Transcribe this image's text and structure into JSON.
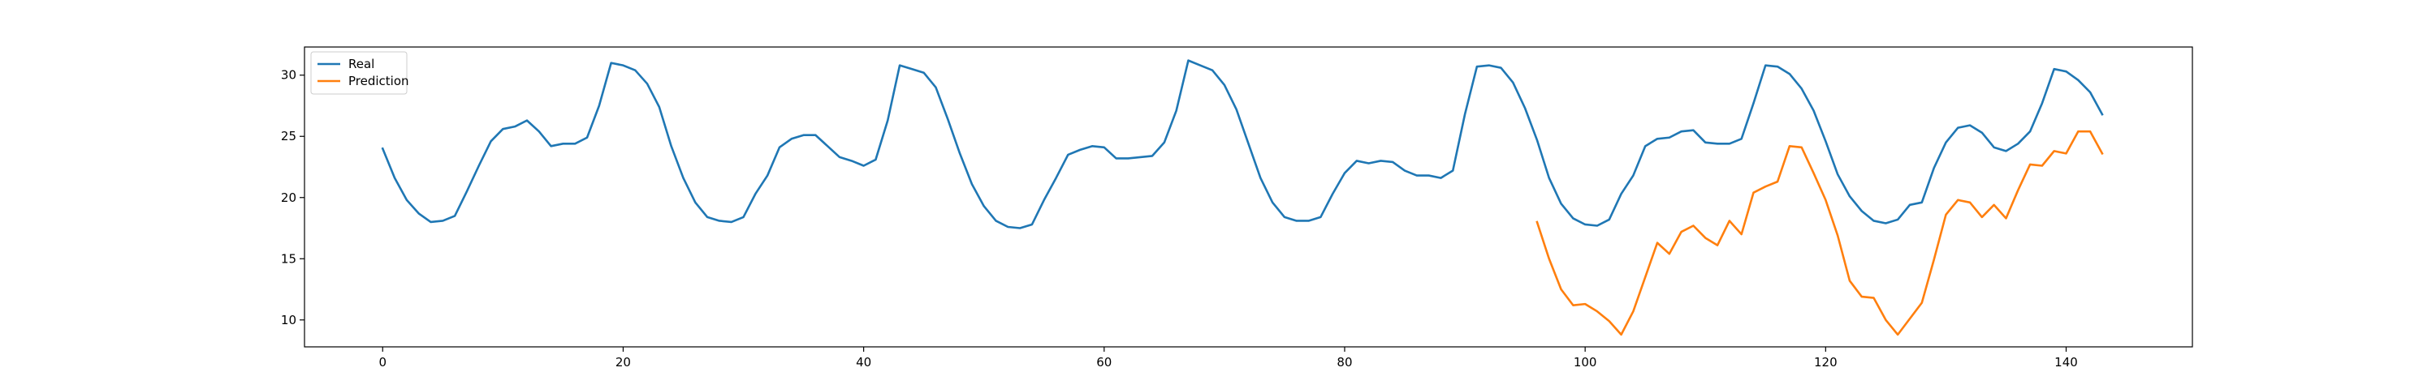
{
  "chart_data": {
    "type": "line",
    "title": "",
    "xlabel": "",
    "ylabel": "",
    "xlim": [
      -6.5,
      150.5
    ],
    "ylim": [
      7.8,
      32.3
    ],
    "grid": false,
    "legend_position": "top-left",
    "x_ticks": [
      0,
      20,
      40,
      60,
      80,
      100,
      120,
      140
    ],
    "y_ticks": [
      10,
      15,
      20,
      25,
      30
    ],
    "series": [
      {
        "name": "Real",
        "color": "#1f77b4",
        "x_start": 0,
        "values": [
          24.0,
          21.6,
          19.8,
          18.7,
          18.0,
          18.1,
          18.5,
          20.5,
          22.6,
          24.6,
          25.6,
          25.8,
          26.3,
          25.4,
          24.2,
          24.4,
          24.4,
          24.9,
          27.5,
          31.0,
          30.8,
          30.4,
          29.3,
          27.4,
          24.2,
          21.6,
          19.6,
          18.4,
          18.1,
          18.0,
          18.4,
          20.3,
          21.8,
          24.1,
          24.8,
          25.1,
          25.1,
          24.2,
          23.3,
          23.0,
          22.6,
          23.1,
          26.3,
          30.8,
          30.5,
          30.2,
          29.0,
          26.4,
          23.6,
          21.1,
          19.3,
          18.1,
          17.6,
          17.5,
          17.8,
          19.8,
          21.6,
          23.5,
          23.9,
          24.2,
          24.1,
          23.2,
          23.2,
          23.3,
          23.4,
          24.5,
          27.1,
          31.2,
          30.8,
          30.4,
          29.2,
          27.2,
          24.4,
          21.6,
          19.6,
          18.4,
          18.1,
          18.1,
          18.4,
          20.3,
          22.0,
          23.0,
          22.8,
          23.0,
          22.9,
          22.2,
          21.8,
          21.8,
          21.6,
          22.2,
          26.8,
          30.7,
          30.8,
          30.6,
          29.4,
          27.3,
          24.7,
          21.6,
          19.5,
          18.3,
          17.8,
          17.7,
          18.2,
          20.3,
          21.8,
          24.2,
          24.8,
          24.9,
          25.4,
          25.5,
          24.5,
          24.4,
          24.4,
          24.8,
          27.7,
          30.8,
          30.7,
          30.1,
          28.9,
          27.1,
          24.6,
          21.9,
          20.1,
          18.9,
          18.1,
          17.9,
          18.2,
          19.4,
          19.6,
          22.4,
          24.5,
          25.7,
          25.9,
          25.3,
          24.1,
          23.8,
          24.4,
          25.4,
          27.7,
          30.5,
          30.3,
          29.6,
          28.6,
          26.8
        ]
      },
      {
        "name": "Prediction",
        "color": "#ff7f0e",
        "x_start": 96,
        "values": [
          18.0,
          15.0,
          12.5,
          11.2,
          11.3,
          10.7,
          9.9,
          8.8,
          10.7,
          13.5,
          16.3,
          15.4,
          17.2,
          17.7,
          16.7,
          16.1,
          18.1,
          17.0,
          20.4,
          20.9,
          21.3,
          24.2,
          24.1,
          22.0,
          19.8,
          16.9,
          13.2,
          11.9,
          11.8,
          10.0,
          8.8,
          10.1,
          11.4,
          14.9,
          18.6,
          19.8,
          19.6,
          18.4,
          19.4,
          18.3,
          20.6,
          22.7,
          22.6,
          23.8,
          23.6,
          25.4,
          25.4,
          23.6
        ]
      }
    ]
  }
}
